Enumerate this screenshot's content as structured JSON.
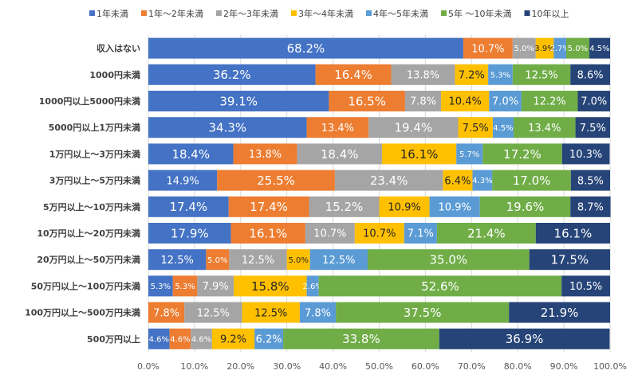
{
  "chart_data": {
    "type": "bar",
    "orientation": "horizontal",
    "stacked": "percent",
    "title": "",
    "xlabel": "",
    "ylabel": "",
    "xlim": [
      0,
      100
    ],
    "grid": true,
    "legend_position": "top",
    "x_tick_labels": [
      "0.0%",
      "10.0%",
      "20.0%",
      "30.0%",
      "40.0%",
      "50.0%",
      "60.0%",
      "70.0%",
      "80.0%",
      "90.0%",
      "100.0%"
    ],
    "categories": [
      "収入はない",
      "1000円未満",
      "1000円以上5000円未満",
      "5000円以上1万円未満",
      "1万円以上～3万円未満",
      "3万円以上～5万円未満",
      "5万円以上～10万円未満",
      "10万円以上～20万円未満",
      "20万円以上～50万円未満",
      "50万円以上～100万円未満",
      "100万円以上～500万円未満",
      "500万円以上"
    ],
    "series": [
      {
        "name": "1年未満",
        "color": "#4472C4",
        "label_color": "#ffffff",
        "values": [
          68.2,
          36.2,
          39.1,
          34.3,
          18.4,
          14.9,
          17.4,
          17.9,
          12.5,
          5.3,
          0,
          4.6
        ]
      },
      {
        "name": "1年～2年未満",
        "color": "#ED7D31",
        "label_color": "#ffffff",
        "values": [
          10.7,
          16.4,
          16.5,
          13.4,
          13.8,
          25.5,
          17.4,
          16.1,
          5.0,
          5.3,
          7.8,
          4.6
        ]
      },
      {
        "name": "2年～3年未満",
        "color": "#A5A5A5",
        "label_color": "#ffffff",
        "values": [
          5.0,
          13.8,
          7.8,
          19.4,
          18.4,
          23.4,
          15.2,
          10.7,
          12.5,
          7.9,
          12.5,
          4.6
        ]
      },
      {
        "name": "3年～4年未満",
        "color": "#FFC000",
        "label_color": "#262626",
        "values": [
          3.9,
          7.2,
          10.4,
          7.5,
          16.1,
          6.4,
          10.9,
          10.7,
          5.0,
          15.8,
          12.5,
          9.2
        ]
      },
      {
        "name": "4年～5年未満",
        "color": "#5B9BD5",
        "label_color": "#ffffff",
        "values": [
          2.7,
          5.3,
          7.0,
          4.5,
          5.7,
          4.3,
          10.9,
          7.1,
          12.5,
          2.6,
          7.8,
          6.2
        ]
      },
      {
        "name": "5年 ～10年未満",
        "color": "#70AD47",
        "label_color": "#ffffff",
        "values": [
          5.0,
          12.5,
          12.2,
          13.4,
          17.2,
          17.0,
          19.6,
          21.4,
          35.0,
          52.6,
          37.5,
          33.8
        ]
      },
      {
        "name": "10年以上",
        "color": "#264478",
        "label_color": "#ffffff",
        "values": [
          4.5,
          8.6,
          7.0,
          7.5,
          10.3,
          8.5,
          8.7,
          16.1,
          17.5,
          10.5,
          21.9,
          36.9
        ]
      }
    ]
  }
}
